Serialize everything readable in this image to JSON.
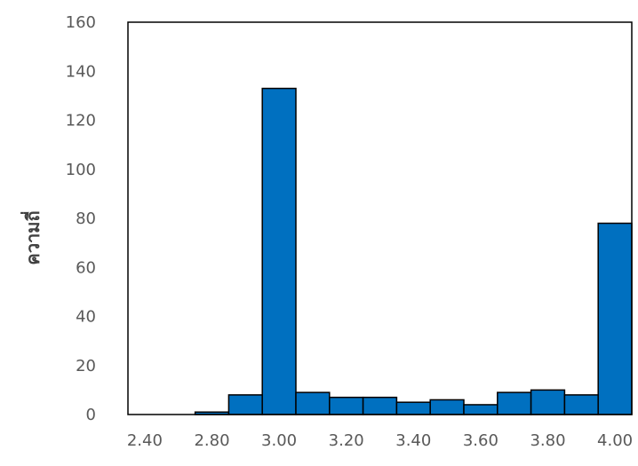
{
  "chart_data": {
    "type": "bar",
    "title": "",
    "xlabel": "",
    "ylabel": "ความถี่",
    "ylim": [
      0,
      160
    ],
    "yticks": [
      "0",
      "20",
      "40",
      "60",
      "80",
      "100",
      "120",
      "140",
      "160"
    ],
    "xticks": [
      "2.40",
      "2.80",
      "3.00",
      "3.20",
      "3.40",
      "3.60",
      "3.80",
      "4.00"
    ],
    "bins": [
      "2.40",
      "2.60",
      "2.80",
      "2.90",
      "3.00",
      "3.10",
      "3.20",
      "3.30",
      "3.40",
      "3.50",
      "3.60",
      "3.70",
      "3.80",
      "3.90",
      "4.00"
    ],
    "values": [
      0,
      0,
      1,
      8,
      133,
      9,
      7,
      7,
      5,
      6,
      4,
      9,
      10,
      8,
      78
    ],
    "bar_color": "#0070C0",
    "bar_outline": "#000000",
    "grid": false,
    "legend": false
  }
}
